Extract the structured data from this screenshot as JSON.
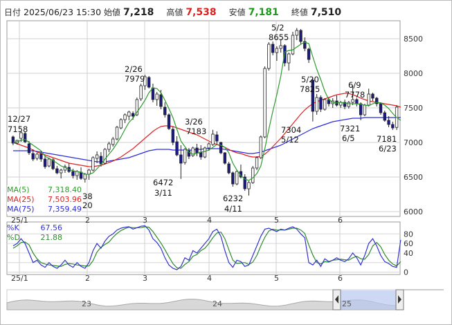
{
  "header": {
    "date_label": "日付",
    "datetime": "2025/06/23 15:30",
    "open_label": "始値",
    "open": "7,218",
    "high_label": "高値",
    "high": "7,538",
    "low_label": "安値",
    "low": "7,181",
    "close_label": "終値",
    "close": "7,510",
    "high_color": "#e0201c",
    "low_color": "#1a9a1a"
  },
  "ma_legend": [
    {
      "label": "MA(5)",
      "value": "7,318.40",
      "color": "#2c9a2c"
    },
    {
      "label": "MA(25)",
      "value": "7,503.96",
      "color": "#e02020"
    },
    {
      "label": "MA(75)",
      "value": "7,359.49",
      "color": "#2a2ae0"
    }
  ],
  "stoch_legend": [
    {
      "label": "%K",
      "value": "67.56",
      "color": "#3030d0"
    },
    {
      "label": "%D",
      "value": "21.88",
      "color": "#2c8a2c"
    }
  ],
  "x_tick_labels": [
    "25/1",
    "2",
    "3",
    "4",
    "5",
    "6"
  ],
  "bottom_tick_labels": [
    "25/1",
    "2",
    "3",
    "4",
    "5",
    "6"
  ],
  "slider_labels": [
    "23",
    "24",
    "25"
  ],
  "annotations": [
    {
      "date": "12/27",
      "value": "7158"
    },
    {
      "date": "2/26",
      "value": "7979"
    },
    {
      "date": "3/11",
      "value": "6472"
    },
    {
      "date": "3/26",
      "value": "7183"
    },
    {
      "date": "4/11",
      "value": "6232"
    },
    {
      "date": "5/2",
      "value": "8655"
    },
    {
      "date": "5/12",
      "value": "7304"
    },
    {
      "date": "5/20",
      "value": "7825"
    },
    {
      "date": "6/5",
      "value": "7321"
    },
    {
      "date": "6/9",
      "value": "7778"
    },
    {
      "date": "6/23",
      "value": "7181"
    }
  ],
  "hidden_annotation_fragments": [
    "38",
    "20"
  ],
  "chart_data": {
    "type": "candlestick",
    "price_axis": {
      "ticks": [
        6000,
        6500,
        7000,
        7500,
        8000,
        8500
      ],
      "ylim": [
        5930,
        8760
      ]
    },
    "stoch_axis": {
      "ticks": [
        0,
        20,
        40,
        60,
        80
      ],
      "ylim": [
        -5,
        105
      ]
    },
    "candles": [
      [
        7080,
        7100,
        6960,
        6990
      ],
      [
        6990,
        7040,
        6970,
        7030
      ],
      [
        7060,
        7160,
        7010,
        7140
      ],
      [
        7130,
        7158,
        6990,
        7010
      ],
      [
        6980,
        7020,
        6820,
        6850
      ],
      [
        6840,
        6900,
        6730,
        6760
      ],
      [
        6770,
        6850,
        6740,
        6830
      ],
      [
        6830,
        6880,
        6720,
        6760
      ],
      [
        6760,
        6810,
        6620,
        6650
      ],
      [
        6660,
        6780,
        6640,
        6760
      ],
      [
        6750,
        6770,
        6600,
        6620
      ],
      [
        6620,
        6660,
        6540,
        6560
      ],
      [
        6560,
        6620,
        6480,
        6600
      ],
      [
        6600,
        6680,
        6560,
        6650
      ],
      [
        6640,
        6700,
        6560,
        6580
      ],
      [
        6580,
        6620,
        6480,
        6520
      ],
      [
        6520,
        6600,
        6460,
        6580
      ],
      [
        6570,
        6640,
        6460,
        6480
      ],
      [
        6470,
        6560,
        6420,
        6540
      ],
      [
        6540,
        6620,
        6460,
        6600
      ],
      [
        6600,
        6800,
        6580,
        6780
      ],
      [
        6770,
        6870,
        6700,
        6820
      ],
      [
        6800,
        6860,
        6650,
        6690
      ],
      [
        6700,
        6920,
        6680,
        6900
      ],
      [
        6900,
        7010,
        6860,
        6980
      ],
      [
        6970,
        7080,
        6940,
        7050
      ],
      [
        7050,
        7240,
        7030,
        7220
      ],
      [
        7210,
        7350,
        7190,
        7330
      ],
      [
        7330,
        7420,
        7280,
        7400
      ],
      [
        7380,
        7460,
        7320,
        7440
      ],
      [
        7420,
        7450,
        7330,
        7380
      ],
      [
        7400,
        7650,
        7380,
        7620
      ],
      [
        7630,
        7850,
        7600,
        7820
      ],
      [
        7820,
        7979,
        7760,
        7950
      ],
      [
        7940,
        7960,
        7780,
        7800
      ],
      [
        7790,
        7850,
        7580,
        7620
      ],
      [
        7620,
        7730,
        7530,
        7700
      ],
      [
        7690,
        7760,
        7480,
        7520
      ],
      [
        7510,
        7580,
        7360,
        7400
      ],
      [
        7400,
        7420,
        7180,
        7200
      ],
      [
        7190,
        7230,
        6960,
        7000
      ],
      [
        7010,
        7090,
        6800,
        6820
      ],
      [
        6820,
        6960,
        6472,
        6700
      ],
      [
        6710,
        6920,
        6680,
        6900
      ],
      [
        6880,
        6920,
        6760,
        6800
      ],
      [
        6810,
        6940,
        6790,
        6920
      ],
      [
        6920,
        6980,
        6800,
        6850
      ],
      [
        6860,
        6960,
        6750,
        6790
      ],
      [
        6790,
        6940,
        6770,
        6920
      ],
      [
        6920,
        7000,
        6880,
        6980
      ],
      [
        6970,
        7183,
        6950,
        7120
      ],
      [
        7110,
        7160,
        6960,
        7020
      ],
      [
        7000,
        7010,
        6830,
        6850
      ],
      [
        6850,
        6860,
        6680,
        6700
      ],
      [
        6690,
        6720,
        6540,
        6560
      ],
      [
        6560,
        6580,
        6360,
        6400
      ],
      [
        6400,
        6600,
        6380,
        6580
      ],
      [
        6580,
        6680,
        6480,
        6500
      ],
      [
        6500,
        6540,
        6300,
        6330
      ],
      [
        6330,
        6440,
        6232,
        6420
      ],
      [
        6420,
        6660,
        6400,
        6630
      ],
      [
        6630,
        6800,
        6600,
        6780
      ],
      [
        6780,
        7100,
        6760,
        7080
      ],
      [
        7080,
        8100,
        7060,
        8070
      ],
      [
        8070,
        8450,
        8040,
        8420
      ],
      [
        8420,
        8460,
        8260,
        8300
      ],
      [
        8300,
        8390,
        8180,
        8360
      ],
      [
        8360,
        8480,
        8300,
        8400
      ],
      [
        8400,
        8420,
        8100,
        8150
      ],
      [
        8150,
        8300,
        8040,
        8280
      ],
      [
        8280,
        8600,
        8260,
        8550
      ],
      [
        8550,
        8655,
        8480,
        8620
      ],
      [
        8620,
        8640,
        8420,
        8460
      ],
      [
        8460,
        8520,
        8320,
        8360
      ],
      [
        8350,
        8370,
        8150,
        8200
      ],
      [
        7900,
        7940,
        7304,
        7450
      ],
      [
        7450,
        7700,
        7400,
        7650
      ],
      [
        7650,
        7680,
        7440,
        7480
      ],
      [
        7480,
        7640,
        7460,
        7620
      ],
      [
        7620,
        7650,
        7520,
        7560
      ],
      [
        7560,
        7640,
        7500,
        7600
      ],
      [
        7600,
        7680,
        7520,
        7540
      ],
      [
        7540,
        7600,
        7500,
        7580
      ],
      [
        7580,
        7620,
        7480,
        7520
      ],
      [
        7520,
        7600,
        7490,
        7580
      ],
      [
        7580,
        7825,
        7540,
        7620
      ],
      [
        7620,
        7640,
        7520,
        7560
      ],
      [
        7560,
        7580,
        7321,
        7400
      ],
      [
        7400,
        7560,
        7380,
        7540
      ],
      [
        7540,
        7778,
        7520,
        7700
      ],
      [
        7700,
        7720,
        7600,
        7640
      ],
      [
        7640,
        7660,
        7520,
        7560
      ],
      [
        7560,
        7580,
        7400,
        7430
      ],
      [
        7430,
        7460,
        7300,
        7320
      ],
      [
        7320,
        7380,
        7220,
        7260
      ],
      [
        7260,
        7300,
        7181,
        7210
      ],
      [
        7218,
        7538,
        7181,
        7510
      ]
    ],
    "ma5": [
      7000,
      7010,
      7030,
      7045,
      7000,
      6960,
      6920,
      6880,
      6800,
      6770,
      6740,
      6700,
      6660,
      6640,
      6610,
      6590,
      6580,
      6570,
      6540,
      6540,
      6560,
      6620,
      6680,
      6760,
      6830,
      6900,
      6990,
      7080,
      7190,
      7290,
      7350,
      7440,
      7520,
      7610,
      7720,
      7790,
      7780,
      7720,
      7610,
      7490,
      7360,
      7190,
      7020,
      6940,
      6860,
      6830,
      6840,
      6860,
      6870,
      6890,
      6930,
      6970,
      6960,
      6930,
      6850,
      6700,
      6600,
      6520,
      6470,
      6450,
      6490,
      6550,
      6660,
      6910,
      7190,
      7450,
      7690,
      7960,
      8310,
      8330,
      8340,
      8380,
      8420,
      8450,
      8430,
      8240,
      8060,
      7910,
      7740,
      7620,
      7580,
      7570,
      7580,
      7570,
      7560,
      7560,
      7560,
      7550,
      7540,
      7530,
      7560,
      7580,
      7570,
      7540,
      7490,
      7420,
      7360,
      7320
    ],
    "ma25": [
      7000,
      6980,
      6960,
      6940,
      6920,
      6890,
      6860,
      6840,
      6820,
      6800,
      6780,
      6760,
      6740,
      6720,
      6700,
      6690,
      6680,
      6670,
      6660,
      6650,
      6650,
      6660,
      6670,
      6690,
      6710,
      6730,
      6760,
      6790,
      6830,
      6870,
      6910,
      6960,
      7010,
      7060,
      7110,
      7160,
      7200,
      7230,
      7240,
      7240,
      7230,
      7210,
      7190,
      7170,
      7150,
      7130,
      7110,
      7080,
      7050,
      7020,
      6990,
      6970,
      6950,
      6930,
      6900,
      6870,
      6850,
      6840,
      6820,
      6800,
      6790,
      6790,
      6800,
      6830,
      6880,
      6940,
      7000,
      7060,
      7130,
      7200,
      7270,
      7340,
      7410,
      7470,
      7520,
      7560,
      7590,
      7610,
      7630,
      7650,
      7670,
      7690,
      7700,
      7710,
      7710,
      7690,
      7670,
      7640,
      7620,
      7600,
      7590,
      7580,
      7570,
      7560,
      7550,
      7540,
      7530,
      7510
    ],
    "ma75": [
      6880,
      6880,
      6880,
      6880,
      6880,
      6880,
      6870,
      6860,
      6850,
      6840,
      6830,
      6820,
      6810,
      6800,
      6790,
      6780,
      6770,
      6760,
      6750,
      6740,
      6730,
      6720,
      6720,
      6720,
      6730,
      6740,
      6750,
      6760,
      6770,
      6780,
      6800,
      6820,
      6840,
      6860,
      6880,
      6890,
      6900,
      6900,
      6900,
      6900,
      6890,
      6890,
      6890,
      6890,
      6890,
      6890,
      6900,
      6900,
      6910,
      6910,
      6910,
      6910,
      6910,
      6900,
      6890,
      6880,
      6870,
      6860,
      6850,
      6840,
      6840,
      6850,
      6860,
      6880,
      6900,
      6920,
      6940,
      6960,
      6990,
      7020,
      7050,
      7080,
      7110,
      7140,
      7170,
      7200,
      7220,
      7240,
      7260,
      7280,
      7300,
      7310,
      7320,
      7330,
      7340,
      7350,
      7350,
      7350,
      7360,
      7360,
      7360,
      7360,
      7360,
      7360,
      7360,
      7360,
      7360,
      7360
    ],
    "stoch_k": [
      55,
      60,
      70,
      60,
      40,
      20,
      25,
      15,
      10,
      20,
      12,
      8,
      15,
      25,
      15,
      10,
      20,
      12,
      8,
      20,
      45,
      60,
      50,
      65,
      75,
      80,
      88,
      92,
      94,
      95,
      90,
      93,
      96,
      97,
      88,
      70,
      62,
      50,
      30,
      15,
      8,
      5,
      12,
      30,
      25,
      45,
      40,
      50,
      60,
      70,
      85,
      90,
      75,
      45,
      20,
      10,
      25,
      22,
      12,
      15,
      35,
      55,
      75,
      90,
      92,
      88,
      85,
      90,
      88,
      92,
      95,
      90,
      80,
      72,
      20,
      15,
      25,
      12,
      28,
      22,
      25,
      30,
      25,
      22,
      28,
      40,
      30,
      15,
      35,
      60,
      70,
      55,
      35,
      22,
      18,
      12,
      10,
      67.56
    ],
    "stoch_d": [
      50,
      55,
      62,
      63,
      57,
      40,
      28,
      20,
      17,
      15,
      14,
      13,
      12,
      16,
      18,
      17,
      15,
      14,
      13,
      13,
      24,
      42,
      52,
      58,
      63,
      73,
      81,
      87,
      91,
      94,
      93,
      93,
      93,
      95,
      94,
      85,
      73,
      61,
      47,
      32,
      18,
      9,
      8,
      16,
      22,
      33,
      37,
      45,
      50,
      60,
      72,
      82,
      84,
      70,
      47,
      25,
      18,
      19,
      20,
      16,
      21,
      35,
      55,
      73,
      86,
      90,
      88,
      88,
      88,
      90,
      92,
      92,
      88,
      81,
      57,
      36,
      20,
      17,
      22,
      21,
      25,
      26,
      27,
      26,
      25,
      30,
      33,
      28,
      27,
      37,
      55,
      62,
      53,
      37,
      25,
      17,
      13,
      21.88
    ],
    "slider_range": {
      "start_label": "24",
      "end_label": "25"
    }
  }
}
